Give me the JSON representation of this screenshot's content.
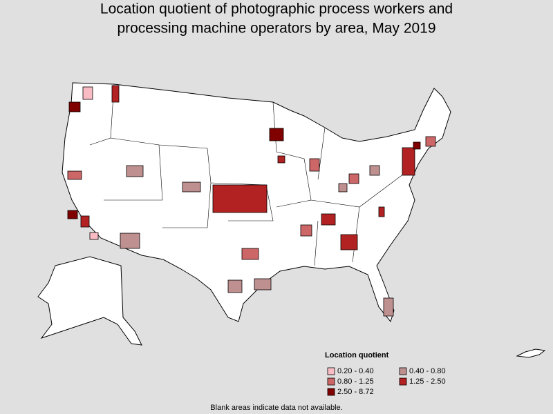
{
  "title_lines": [
    "Location quotient of photographic process workers and",
    "processing machine operators by area, May 2019"
  ],
  "legend": {
    "title": "Location quotient",
    "items": [
      {
        "label": "0.20 - 0.40",
        "color": "#f9bcc4"
      },
      {
        "label": "0.40 - 0.80",
        "color": "#bf9090"
      },
      {
        "label": "0.80 - 1.25",
        "color": "#cd6666"
      },
      {
        "label": "1.25 - 2.50",
        "color": "#b22222"
      },
      {
        "label": "2.50 - 8.72",
        "color": "#800000"
      }
    ]
  },
  "note": "Blank areas indicate data not available."
}
